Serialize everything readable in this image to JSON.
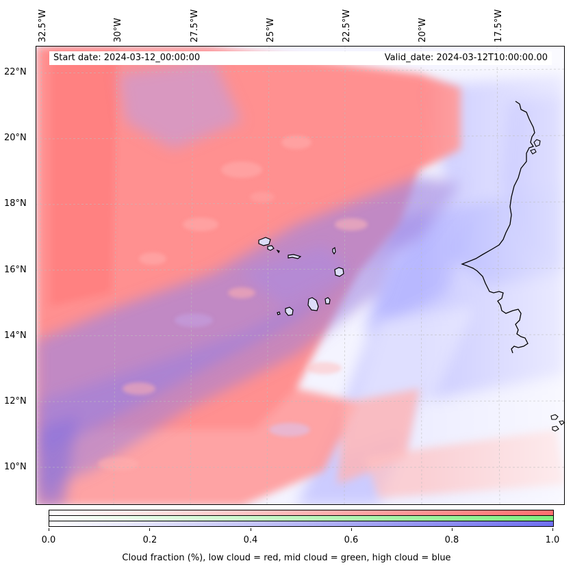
{
  "map": {
    "longitude_labels": [
      "32.5°W",
      "30°W",
      "27.5°W",
      "25°W",
      "22.5°W",
      "20°W",
      "17.5°W"
    ],
    "latitude_labels": [
      "22°N",
      "20°N",
      "18°N",
      "16°N",
      "14°N",
      "12°N",
      "10°N"
    ],
    "info": {
      "start": "Start date: 2024-03-12_00:00:00",
      "valid": "Valid_date: 2024-03-12T10:00:00.00"
    },
    "colors": {
      "low_cloud": "#ff7f7f",
      "mid_cloud": "#8cf28c",
      "high_cloud": "#7f7fff",
      "coastline": "#000000"
    }
  },
  "colorbar": {
    "ticks": [
      "0.0",
      "0.2",
      "0.4",
      "0.6",
      "0.8",
      "1.0"
    ],
    "caption": "Cloud fraction (%), low cloud = red, mid cloud = green, high cloud = blue"
  }
}
